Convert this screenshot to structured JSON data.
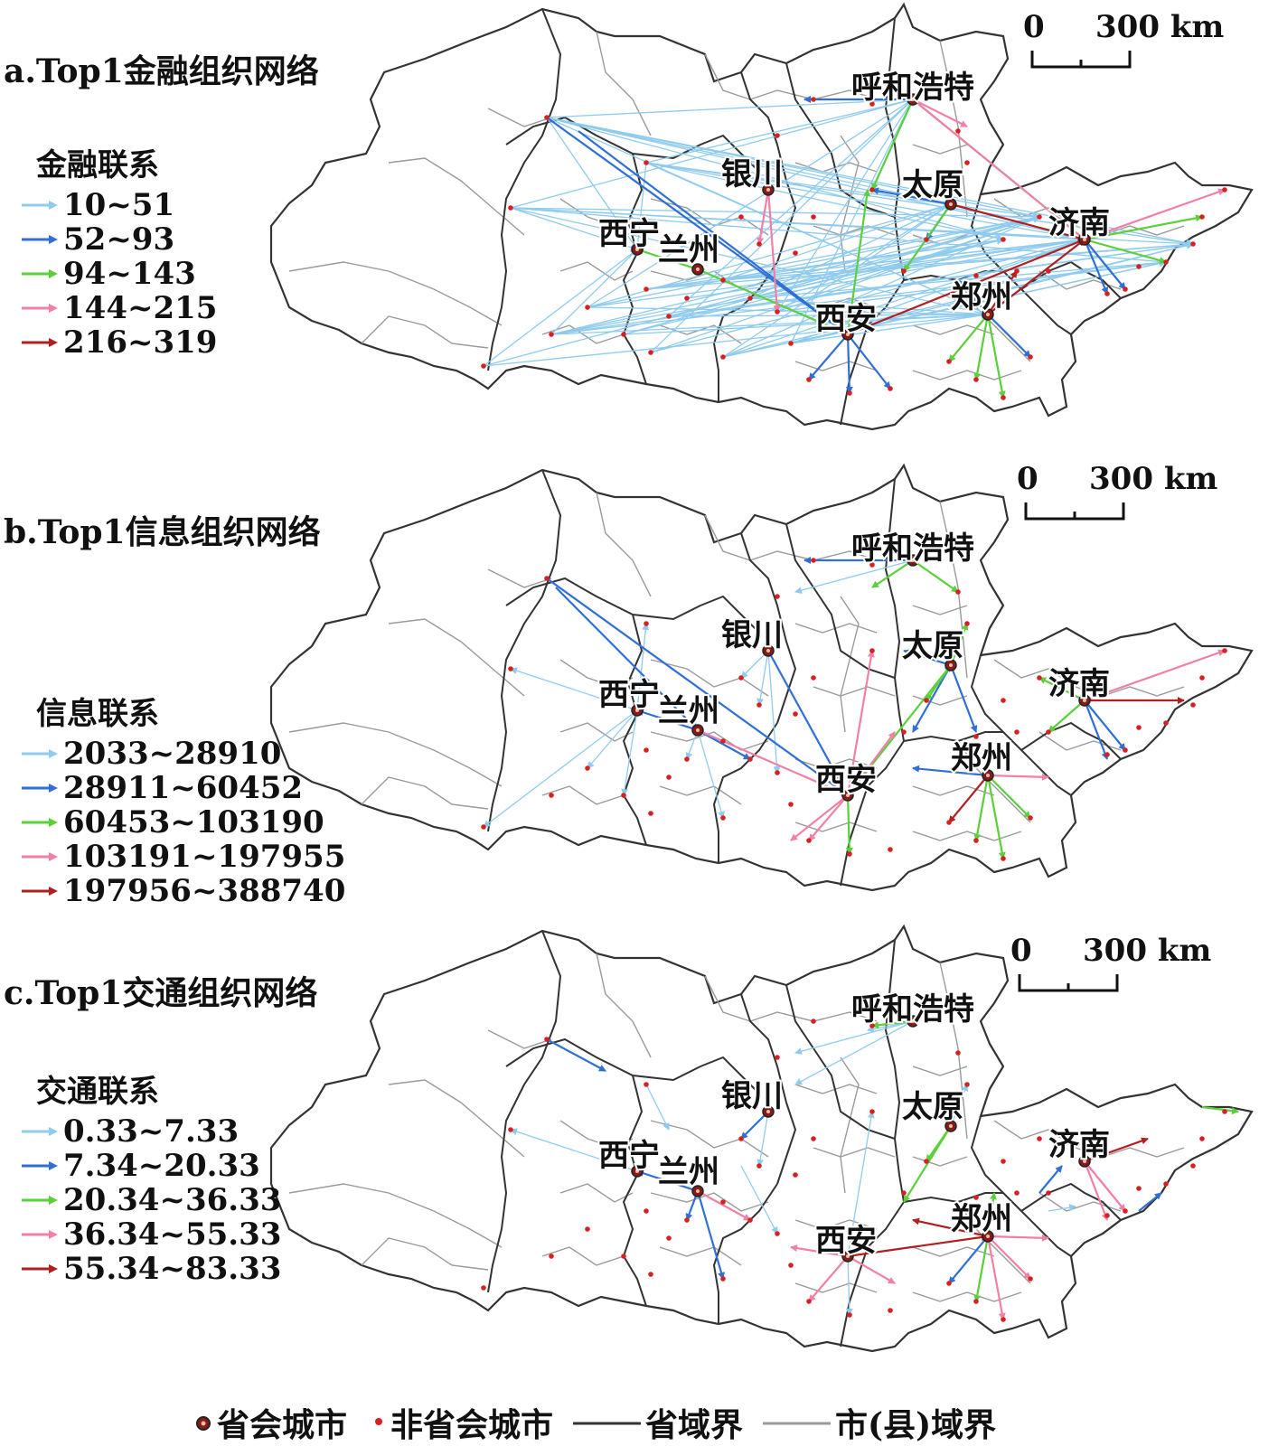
{
  "colors": {
    "class1": "#8ecbee",
    "class2": "#2f6fd6",
    "class3": "#5ad03a",
    "class4": "#f080a8",
    "class5": "#b02020",
    "province_border": "#333333",
    "county_border": "#9a9a9a",
    "capital_dot": "#8a1a1a",
    "city_dot": "#d82020"
  },
  "cities": {
    "hohhot": "呼和浩特",
    "yinchuan": "银川",
    "taiyuan": "太原",
    "jinan": "济南",
    "xining": "西宁",
    "lanzhou": "兰州",
    "xian": "西安",
    "zhengzhou": "郑州"
  },
  "scale": {
    "zero": "0",
    "distance": "300",
    "unit": "km"
  },
  "panels": [
    {
      "title": "a.Top1金融组织网络",
      "legend_title": "金融联系",
      "legend": [
        "10~51",
        "52~93",
        "94~143",
        "144~215",
        "216~319"
      ]
    },
    {
      "title": "b.Top1信息组织网络",
      "legend_title": "信息联系",
      "legend": [
        "2033~28910",
        "28911~60452",
        "60453~103190",
        "103191~197955",
        "197956~388740"
      ]
    },
    {
      "title": "c.Top1交通组织网络",
      "legend_title": "交通联系",
      "legend": [
        "0.33~7.33",
        "7.34~20.33",
        "20.34~36.33",
        "36.34~55.33",
        "55.34~83.33"
      ]
    }
  ],
  "footer": {
    "capital": "省会城市",
    "non_capital": "非省会城市",
    "province_border": "省域界",
    "county_border": "市(县)域界"
  }
}
